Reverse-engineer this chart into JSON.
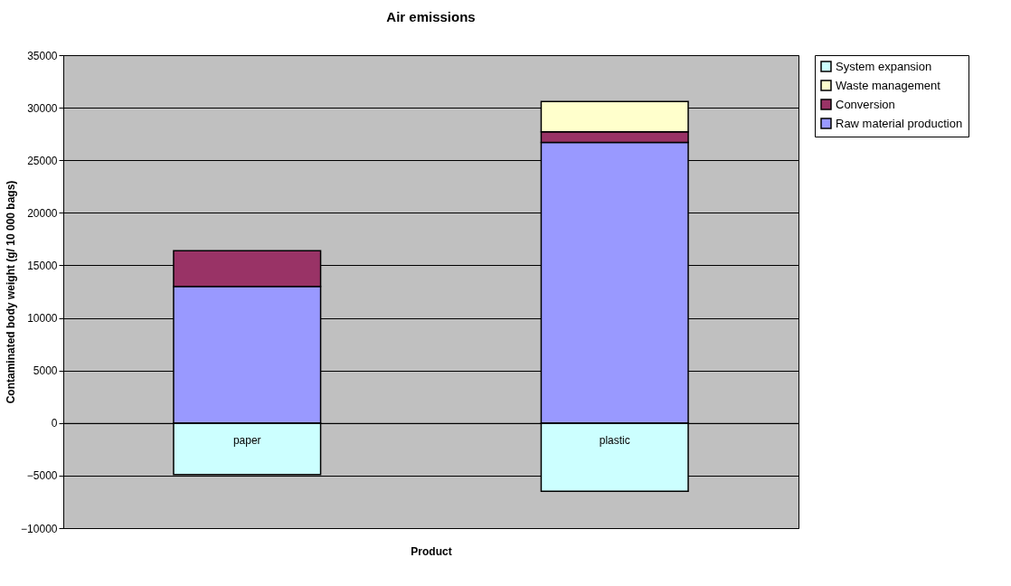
{
  "chart_data": {
    "type": "bar",
    "title": "Air emissions",
    "xlabel": "Product",
    "ylabel": "Contaminated body weight (g/ 10 000 bags)",
    "categories": [
      "paper",
      "plastic"
    ],
    "stacked": true,
    "series": [
      {
        "name": "Raw material production",
        "color": "#9999ff",
        "values": [
          13000,
          26700
        ]
      },
      {
        "name": "Conversion",
        "color": "#993366",
        "values": [
          3400,
          1000
        ]
      },
      {
        "name": "Waste management",
        "color": "#ffffcc",
        "values": [
          null,
          2900
        ]
      },
      {
        "name": "System expansion",
        "color": "#ccffff",
        "values": [
          -4900,
          -6500
        ]
      }
    ],
    "ylim": [
      -10000,
      35000
    ],
    "yticks": [
      -10000,
      -5000,
      0,
      5000,
      10000,
      15000,
      20000,
      25000,
      30000,
      35000
    ],
    "grid": "y",
    "legend": "right"
  }
}
